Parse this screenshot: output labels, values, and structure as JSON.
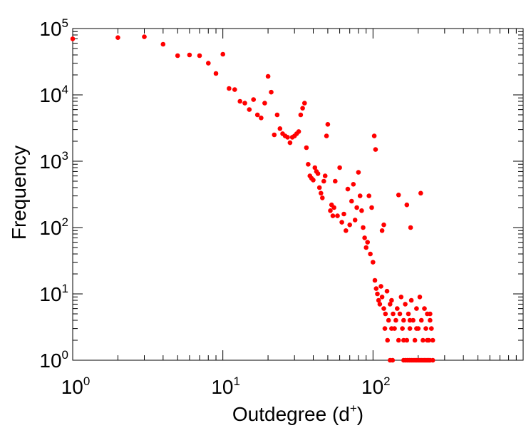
{
  "chart_data": {
    "type": "scatter",
    "xlabel": "Outdegree (d",
    "xlabel_sup": "+",
    "xlabel_end": ")",
    "ylabel": "Frequency",
    "x_scale": "log",
    "y_scale": "log",
    "xlim": [
      1,
      1000
    ],
    "ylim": [
      1,
      100000
    ],
    "grid": false,
    "marker_color": "#ff0000",
    "x_ticks": [
      {
        "value": 1,
        "base": "10",
        "exp": "0"
      },
      {
        "value": 10,
        "base": "10",
        "exp": "1"
      },
      {
        "value": 100,
        "base": "10",
        "exp": "2"
      }
    ],
    "y_ticks": [
      {
        "value": 1,
        "base": "10",
        "exp": "0"
      },
      {
        "value": 10,
        "base": "10",
        "exp": "1"
      },
      {
        "value": 100,
        "base": "10",
        "exp": "2"
      },
      {
        "value": 1000,
        "base": "10",
        "exp": "3"
      },
      {
        "value": 10000,
        "base": "10",
        "exp": "4"
      },
      {
        "value": 100000,
        "base": "10",
        "exp": "5"
      }
    ],
    "points": [
      [
        1,
        70000
      ],
      [
        2,
        73000
      ],
      [
        3,
        75000
      ],
      [
        4,
        58000
      ],
      [
        5,
        39000
      ],
      [
        6,
        40000
      ],
      [
        7,
        39000
      ],
      [
        8,
        30000
      ],
      [
        9,
        21000
      ],
      [
        10,
        41000
      ],
      [
        11,
        12500
      ],
      [
        12,
        12000
      ],
      [
        13,
        8000
      ],
      [
        14,
        7500
      ],
      [
        15,
        6000
      ],
      [
        16,
        8500
      ],
      [
        17,
        5000
      ],
      [
        18,
        4500
      ],
      [
        19,
        7500
      ],
      [
        20,
        19000
      ],
      [
        21,
        11000
      ],
      [
        22,
        2500
      ],
      [
        23,
        5000
      ],
      [
        24,
        3100
      ],
      [
        25,
        2600
      ],
      [
        26,
        2400
      ],
      [
        27,
        2300
      ],
      [
        28,
        1900
      ],
      [
        29,
        2300
      ],
      [
        30,
        2400
      ],
      [
        31,
        2600
      ],
      [
        32,
        2800
      ],
      [
        33,
        5000
      ],
      [
        34,
        6300
      ],
      [
        35,
        7500
      ],
      [
        36,
        1600
      ],
      [
        37,
        900
      ],
      [
        38,
        600
      ],
      [
        39,
        550
      ],
      [
        40,
        520
      ],
      [
        41,
        800
      ],
      [
        42,
        700
      ],
      [
        43,
        650
      ],
      [
        44,
        400
      ],
      [
        45,
        330
      ],
      [
        46,
        280
      ],
      [
        47,
        500
      ],
      [
        48,
        600
      ],
      [
        49,
        2400
      ],
      [
        50,
        3600
      ],
      [
        52,
        180
      ],
      [
        53,
        220
      ],
      [
        54,
        150
      ],
      [
        55,
        200
      ],
      [
        56,
        500
      ],
      [
        58,
        150
      ],
      [
        60,
        800
      ],
      [
        62,
        120
      ],
      [
        64,
        160
      ],
      [
        66,
        90
      ],
      [
        68,
        380
      ],
      [
        70,
        110
      ],
      [
        72,
        250
      ],
      [
        74,
        450
      ],
      [
        76,
        130
      ],
      [
        78,
        200
      ],
      [
        80,
        680
      ],
      [
        82,
        300
      ],
      [
        84,
        180
      ],
      [
        86,
        100
      ],
      [
        88,
        70
      ],
      [
        90,
        50
      ],
      [
        92,
        60
      ],
      [
        94,
        300
      ],
      [
        96,
        40
      ],
      [
        98,
        200
      ],
      [
        100,
        30
      ],
      [
        102,
        2400
      ],
      [
        104,
        1500
      ],
      [
        103,
        16
      ],
      [
        105,
        12
      ],
      [
        107,
        10
      ],
      [
        109,
        8
      ],
      [
        111,
        7
      ],
      [
        113,
        13
      ],
      [
        115,
        9
      ],
      [
        118,
        6
      ],
      [
        121,
        5
      ],
      [
        124,
        11
      ],
      [
        127,
        4
      ],
      [
        130,
        7
      ],
      [
        133,
        8
      ],
      [
        136,
        5
      ],
      [
        139,
        3
      ],
      [
        142,
        4
      ],
      [
        145,
        6
      ],
      [
        148,
        2
      ],
      [
        151,
        5
      ],
      [
        154,
        9
      ],
      [
        157,
        3
      ],
      [
        160,
        4
      ],
      [
        164,
        7
      ],
      [
        168,
        2
      ],
      [
        172,
        5
      ],
      [
        176,
        3
      ],
      [
        180,
        8
      ],
      [
        185,
        4
      ],
      [
        190,
        2
      ],
      [
        195,
        6
      ],
      [
        200,
        3
      ],
      [
        205,
        9
      ],
      [
        210,
        4
      ],
      [
        215,
        2
      ],
      [
        220,
        6
      ],
      [
        225,
        3
      ],
      [
        230,
        5
      ],
      [
        235,
        2
      ],
      [
        240,
        4
      ],
      [
        245,
        3
      ],
      [
        250,
        2
      ],
      [
        125,
        2
      ],
      [
        133,
        3
      ],
      [
        160,
        2
      ],
      [
        195,
        3
      ],
      [
        230,
        2
      ],
      [
        120,
        3
      ],
      [
        176,
        4
      ],
      [
        240,
        5
      ],
      [
        130,
        1
      ],
      [
        135,
        1
      ],
      [
        160,
        1
      ],
      [
        165,
        1
      ],
      [
        170,
        1
      ],
      [
        175,
        1
      ],
      [
        180,
        1
      ],
      [
        185,
        1
      ],
      [
        190,
        1
      ],
      [
        195,
        1
      ],
      [
        200,
        1
      ],
      [
        205,
        1
      ],
      [
        210,
        1
      ],
      [
        215,
        1
      ],
      [
        220,
        1
      ],
      [
        225,
        1
      ],
      [
        230,
        1
      ],
      [
        235,
        1
      ],
      [
        240,
        1
      ],
      [
        250,
        1
      ],
      [
        115,
        90
      ],
      [
        118,
        110
      ],
      [
        148,
        310
      ],
      [
        168,
        220
      ],
      [
        178,
        100
      ],
      [
        208,
        330
      ]
    ]
  }
}
